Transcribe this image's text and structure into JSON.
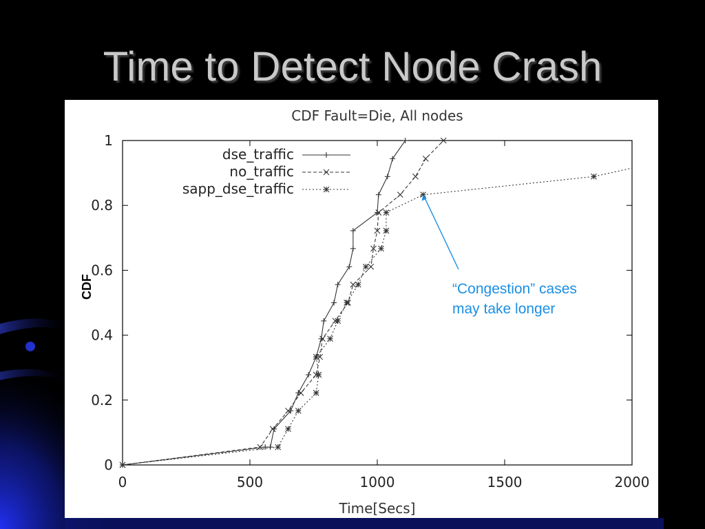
{
  "slide": {
    "title": "Time to Detect Node Crash",
    "background": "#000000",
    "accent": "#1c2fd6"
  },
  "annotation": {
    "line1": "“Congestion” cases",
    "line2": "may take longer",
    "color": "#1a8fe3",
    "arrow_target": [
      1180,
      0.833
    ]
  },
  "chart_data": {
    "type": "line",
    "title": "CDF Fault=Die, All nodes",
    "xlabel": "Time[Secs]",
    "ylabel": "CDF",
    "xlim": [
      0,
      2000
    ],
    "ylim": [
      0,
      1
    ],
    "xticks": [
      "0",
      "500",
      "1000",
      "1500",
      "2000"
    ],
    "yticks": [
      "0",
      "0.2",
      "0.4",
      "0.6",
      "0.8",
      "1"
    ],
    "legend_position": "top-left",
    "grid": false,
    "series": [
      {
        "name": "dse_traffic",
        "marker": "plus",
        "dash": "solid",
        "points": [
          [
            0,
            0
          ],
          [
            560,
            0.055
          ],
          [
            580,
            0.055
          ],
          [
            595,
            0.111
          ],
          [
            660,
            0.167
          ],
          [
            690,
            0.222
          ],
          [
            730,
            0.278
          ],
          [
            760,
            0.333
          ],
          [
            780,
            0.389
          ],
          [
            790,
            0.444
          ],
          [
            830,
            0.5
          ],
          [
            845,
            0.556
          ],
          [
            890,
            0.611
          ],
          [
            905,
            0.667
          ],
          [
            905,
            0.722
          ],
          [
            1000,
            0.778
          ],
          [
            1005,
            0.833
          ],
          [
            1040,
            0.889
          ],
          [
            1060,
            0.944
          ],
          [
            1110,
            1.0
          ]
        ]
      },
      {
        "name": "no_traffic",
        "marker": "x",
        "dash": "dashed",
        "points": [
          [
            0,
            0
          ],
          [
            540,
            0.055
          ],
          [
            590,
            0.111
          ],
          [
            650,
            0.167
          ],
          [
            700,
            0.222
          ],
          [
            760,
            0.278
          ],
          [
            775,
            0.333
          ],
          [
            785,
            0.389
          ],
          [
            835,
            0.444
          ],
          [
            885,
            0.5
          ],
          [
            905,
            0.556
          ],
          [
            975,
            0.611
          ],
          [
            985,
            0.667
          ],
          [
            1000,
            0.722
          ],
          [
            1005,
            0.778
          ],
          [
            1090,
            0.833
          ],
          [
            1150,
            0.889
          ],
          [
            1190,
            0.944
          ],
          [
            1260,
            1.0
          ]
        ]
      },
      {
        "name": "sapp_dse_traffic",
        "marker": "star",
        "dash": "dotted",
        "points": [
          [
            0,
            0
          ],
          [
            610,
            0.055
          ],
          [
            650,
            0.111
          ],
          [
            690,
            0.167
          ],
          [
            760,
            0.222
          ],
          [
            770,
            0.278
          ],
          [
            760,
            0.333
          ],
          [
            815,
            0.389
          ],
          [
            845,
            0.444
          ],
          [
            880,
            0.5
          ],
          [
            925,
            0.556
          ],
          [
            955,
            0.611
          ],
          [
            1015,
            0.667
          ],
          [
            1035,
            0.722
          ],
          [
            1035,
            0.778
          ],
          [
            1180,
            0.833
          ],
          [
            1850,
            0.889
          ],
          [
            2000,
            0.915
          ]
        ]
      }
    ]
  }
}
